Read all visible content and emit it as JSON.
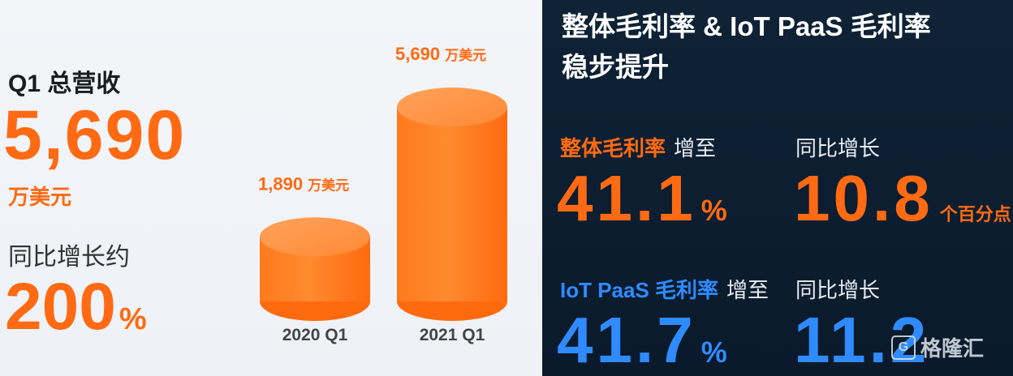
{
  "left": {
    "title": "Q1 总营收",
    "revenue_value": "5,690",
    "revenue_unit": "万美元",
    "yoy_label": "同比增长约",
    "yoy_value": "200",
    "yoy_pct": "%"
  },
  "right": {
    "title_line1": "整体毛利率 & IoT PaaS 毛利率",
    "title_line2": "稳步提升",
    "overall": {
      "label": "整体毛利率",
      "suffix": "增至",
      "value": "41.1",
      "pct": "%",
      "yoy_label": "同比增长",
      "yoy_value": "10.8",
      "yoy_unit": "个百分点"
    },
    "iot": {
      "label": "IoT PaaS 毛利率",
      "suffix": "增至",
      "value": "41.7",
      "pct": "%",
      "yoy_label": "同比增长",
      "yoy_value": "11.2"
    }
  },
  "watermark": {
    "icon": "G",
    "text": "格隆汇"
  },
  "colors": {
    "orange": "#ff6a12",
    "blue": "#2f8bff",
    "dark_bg": "#0f2236",
    "light_bg": "#f3f5f9"
  },
  "chart_data": {
    "type": "bar",
    "categories": [
      "2020 Q1",
      "2021 Q1"
    ],
    "values": [
      1890,
      5690
    ],
    "value_labels": [
      "1,890",
      "5,690"
    ],
    "value_unit": "万美元",
    "title": "",
    "xlabel": "",
    "ylabel": "",
    "ylim": [
      0,
      5690
    ]
  }
}
